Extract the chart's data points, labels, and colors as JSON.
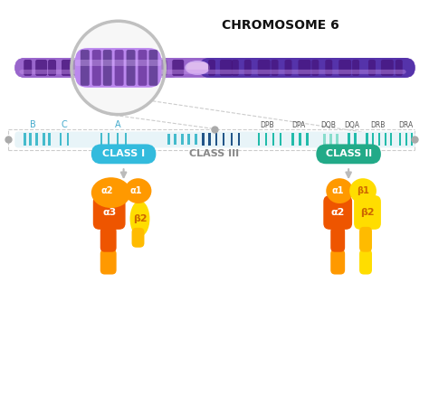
{
  "title": "CHROMOSOME 6",
  "bg": "#ffffff",
  "chr_purple": "#9966cc",
  "chr_dark": "#5533aa",
  "chr_light": "#cc99ee",
  "chr_stripe": "#441188",
  "chr_highlight": "#bb88dd",
  "centromere_color": "#ccaaee",
  "class1_label": "CLASS I",
  "class1_color": "#33bbdd",
  "class2_label": "CLASS II",
  "class2_color": "#22aa88",
  "class3_label": "CLASS III",
  "class3_color": "#888888",
  "tick_cyan": "#44bbcc",
  "tick_dark_blue": "#225588",
  "tick_teal": "#22bbaa",
  "tick_light_teal": "#88ddcc",
  "orange": "#ff9900",
  "dark_orange": "#ee5500",
  "yellow": "#ffdd00",
  "dark_yellow": "#ffbb00",
  "orange_text": "#cc6600",
  "arrow_color": "#bbbbbb",
  "dot_color": "#aaaaaa",
  "dashed_color": "#cccccc",
  "gmap_bg": "#e8f4f8",
  "label_color": "#44aacc"
}
